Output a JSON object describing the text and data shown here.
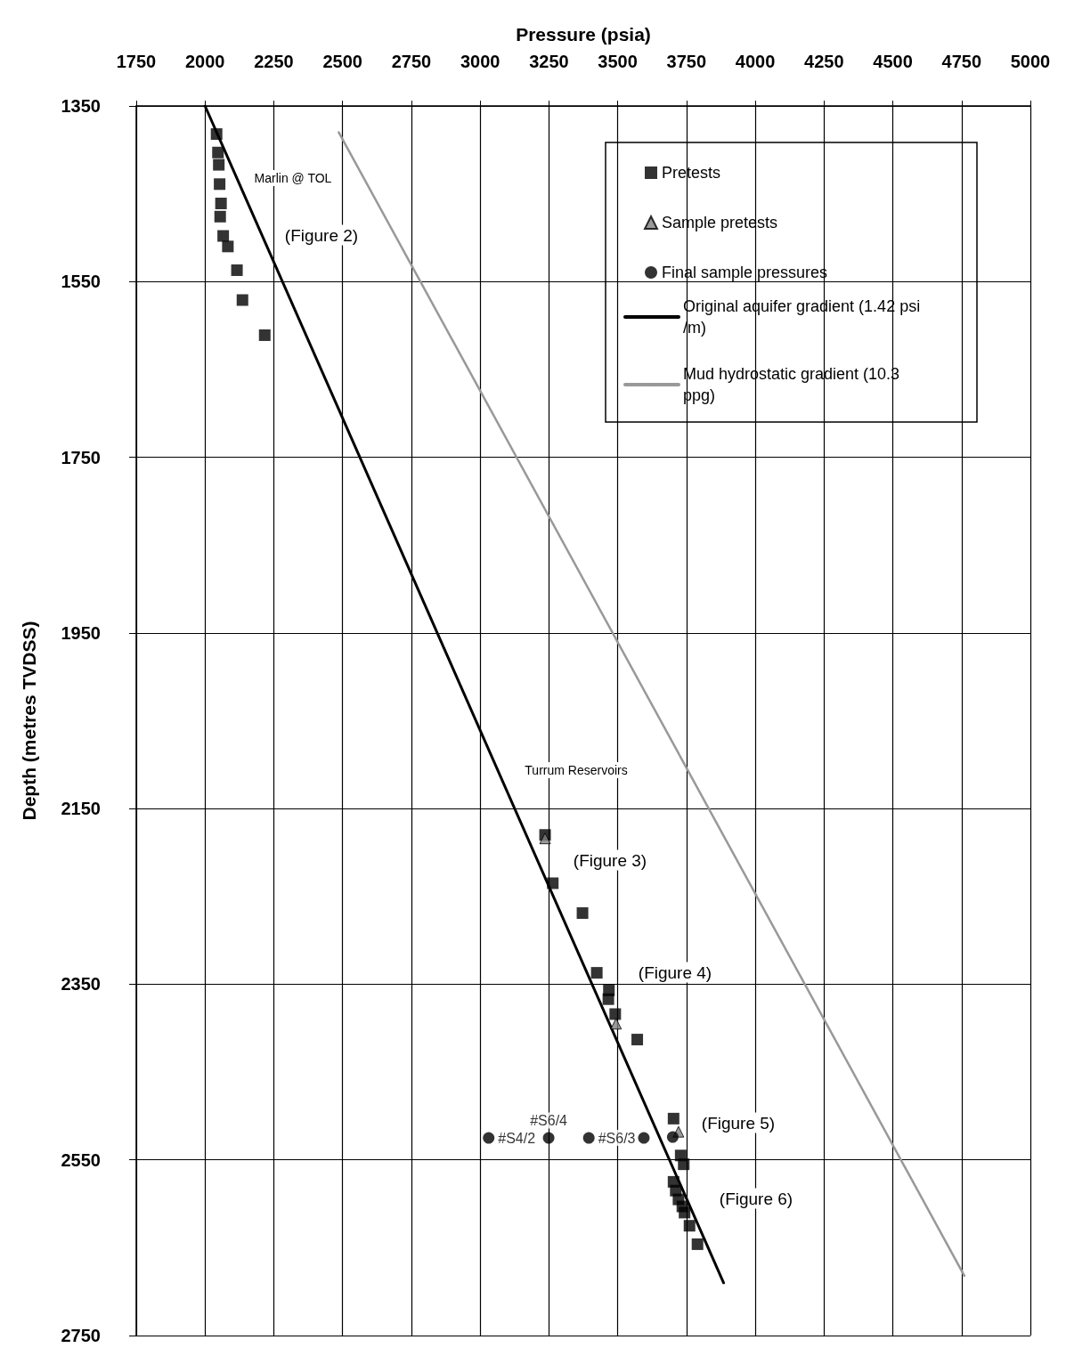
{
  "chart_data": {
    "type": "scatter",
    "xlabel": "Pressure (psia)",
    "ylabel": "Depth (metres TVDSS)",
    "xlim": [
      1750,
      5000
    ],
    "xticks": [
      1750,
      2000,
      2250,
      2500,
      2750,
      3000,
      3250,
      3500,
      3750,
      4000,
      4250,
      4500,
      4750,
      5000
    ],
    "ylim": [
      2750,
      1350
    ],
    "yticks": [
      1350,
      1550,
      1750,
      1950,
      2150,
      2350,
      2550,
      2750
    ],
    "grid": true,
    "legend": "top right",
    "series": [
      {
        "name": "Pretests",
        "marker": "square",
        "color": "#000000",
        "x": [
          2042,
          2047,
          2050,
          2053,
          2058,
          2055,
          2066,
          2083,
          2116,
          2136,
          2217,
          3236,
          3264,
          3372,
          3424,
          3468,
          3466,
          3491,
          3571,
          3703,
          3729,
          3740,
          3703,
          3711,
          3721,
          3735,
          3743,
          3761,
          3790
        ],
        "values": [
          1382,
          1403,
          1417,
          1439,
          1461,
          1476,
          1498,
          1510,
          1537,
          1571,
          1611,
          2180,
          2235,
          2269,
          2337,
          2357,
          2367,
          2384,
          2413,
          2503,
          2545,
          2555,
          2575,
          2585,
          2595,
          2603,
          2610,
          2625,
          2646
        ]
      },
      {
        "name": "Sample pretests",
        "marker": "triangle",
        "color": "#808080",
        "x": [
          3236,
          3494,
          3721
        ],
        "values": [
          2184,
          2395,
          2518
        ]
      },
      {
        "name": "Final sample pressures",
        "marker": "circle",
        "color": "#000000",
        "x": [
          3031,
          3249,
          3395,
          3595,
          3700
        ],
        "values": [
          2525,
          2525,
          2525,
          2525,
          2524
        ],
        "value_labels": [
          "#S4/2",
          "#S6/4",
          "#S6/3",
          null,
          null
        ]
      },
      {
        "name": "Original aquifer gradient (1.42 psi/m)",
        "type": "line",
        "color": "#000000",
        "line_style": "solid",
        "x": [
          2000,
          3885
        ],
        "values": [
          1350,
          2690
        ]
      },
      {
        "name": "Mud hydrostatic gradient (10.3 ppg)",
        "type": "line",
        "color": "#999999",
        "line_style": "solid",
        "x": [
          2486,
          4760
        ],
        "values": [
          1380,
          2682
        ]
      }
    ],
    "annotations": [
      "Marlin @ TOL",
      "(Figure 2)",
      "Turrum Reservoirs",
      "(Figure 3)",
      "(Figure 4)",
      "(Figure 5)",
      "(Figure 6)"
    ]
  }
}
